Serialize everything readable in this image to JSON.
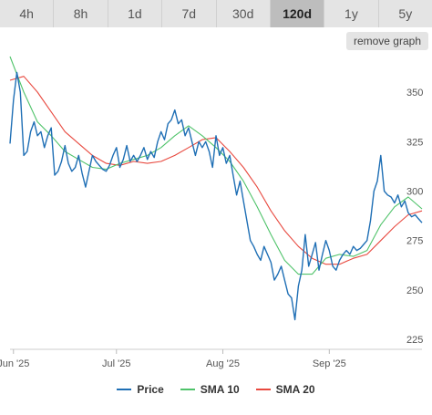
{
  "tabs": [
    {
      "label": "4h",
      "active": false
    },
    {
      "label": "8h",
      "active": false
    },
    {
      "label": "1d",
      "active": false
    },
    {
      "label": "7d",
      "active": false
    },
    {
      "label": "30d",
      "active": false
    },
    {
      "label": "120d",
      "active": true
    },
    {
      "label": "1y",
      "active": false
    },
    {
      "label": "5y",
      "active": false
    }
  ],
  "remove_graph_label": "remove graph",
  "chart_data": {
    "type": "line",
    "title": "",
    "xlabel": "",
    "ylabel": "",
    "grid": false,
    "legend_position": "bottom",
    "x_range": [
      "2025-05-31",
      "2025-09-28"
    ],
    "ylim": [
      220,
      368
    ],
    "y_ticks": [
      225,
      250,
      275,
      300,
      325,
      350
    ],
    "x_ticks": [
      {
        "label": "Jun '25",
        "date": "2025-06-01"
      },
      {
        "label": "Jul '25",
        "date": "2025-07-01"
      },
      {
        "label": "Aug '25",
        "date": "2025-08-01"
      },
      {
        "label": "Sep '25",
        "date": "2025-09-01"
      }
    ],
    "series": [
      {
        "name": "Price",
        "color": "#1f6fb5",
        "points": [
          [
            "2025-05-31",
            324
          ],
          [
            "2025-06-01",
            346
          ],
          [
            "2025-06-02",
            360
          ],
          [
            "2025-06-03",
            350
          ],
          [
            "2025-06-04",
            318
          ],
          [
            "2025-06-05",
            320
          ],
          [
            "2025-06-06",
            330
          ],
          [
            "2025-06-07",
            335
          ],
          [
            "2025-06-08",
            328
          ],
          [
            "2025-06-09",
            330
          ],
          [
            "2025-06-10",
            322
          ],
          [
            "2025-06-11",
            328
          ],
          [
            "2025-06-12",
            332
          ],
          [
            "2025-06-13",
            308
          ],
          [
            "2025-06-14",
            310
          ],
          [
            "2025-06-15",
            315
          ],
          [
            "2025-06-16",
            323
          ],
          [
            "2025-06-17",
            314
          ],
          [
            "2025-06-18",
            310
          ],
          [
            "2025-06-19",
            312
          ],
          [
            "2025-06-20",
            318
          ],
          [
            "2025-06-21",
            309
          ],
          [
            "2025-06-22",
            302
          ],
          [
            "2025-06-23",
            310
          ],
          [
            "2025-06-24",
            318
          ],
          [
            "2025-06-25",
            315
          ],
          [
            "2025-06-26",
            313
          ],
          [
            "2025-06-27",
            311
          ],
          [
            "2025-06-28",
            310
          ],
          [
            "2025-06-29",
            313
          ],
          [
            "2025-06-30",
            318
          ],
          [
            "2025-07-01",
            322
          ],
          [
            "2025-07-02",
            312
          ],
          [
            "2025-07-03",
            316
          ],
          [
            "2025-07-04",
            323
          ],
          [
            "2025-07-05",
            315
          ],
          [
            "2025-07-06",
            318
          ],
          [
            "2025-07-07",
            315
          ],
          [
            "2025-07-08",
            318
          ],
          [
            "2025-07-09",
            322
          ],
          [
            "2025-07-10",
            316
          ],
          [
            "2025-07-11",
            320
          ],
          [
            "2025-07-12",
            317
          ],
          [
            "2025-07-13",
            325
          ],
          [
            "2025-07-14",
            330
          ],
          [
            "2025-07-15",
            326
          ],
          [
            "2025-07-16",
            334
          ],
          [
            "2025-07-17",
            336
          ],
          [
            "2025-07-18",
            341
          ],
          [
            "2025-07-19",
            334
          ],
          [
            "2025-07-20",
            336
          ],
          [
            "2025-07-21",
            328
          ],
          [
            "2025-07-22",
            332
          ],
          [
            "2025-07-23",
            325
          ],
          [
            "2025-07-24",
            318
          ],
          [
            "2025-07-25",
            325
          ],
          [
            "2025-07-26",
            322
          ],
          [
            "2025-07-27",
            325
          ],
          [
            "2025-07-28",
            320
          ],
          [
            "2025-07-29",
            312
          ],
          [
            "2025-07-30",
            328
          ],
          [
            "2025-07-31",
            318
          ],
          [
            "2025-08-01",
            322
          ],
          [
            "2025-08-02",
            314
          ],
          [
            "2025-08-03",
            318
          ],
          [
            "2025-08-04",
            308
          ],
          [
            "2025-08-05",
            298
          ],
          [
            "2025-08-06",
            305
          ],
          [
            "2025-08-07",
            295
          ],
          [
            "2025-08-08",
            285
          ],
          [
            "2025-08-09",
            275
          ],
          [
            "2025-08-10",
            272
          ],
          [
            "2025-08-11",
            268
          ],
          [
            "2025-08-12",
            265
          ],
          [
            "2025-08-13",
            272
          ],
          [
            "2025-08-14",
            268
          ],
          [
            "2025-08-15",
            264
          ],
          [
            "2025-08-16",
            255
          ],
          [
            "2025-08-17",
            258
          ],
          [
            "2025-08-18",
            262
          ],
          [
            "2025-08-19",
            255
          ],
          [
            "2025-08-20",
            248
          ],
          [
            "2025-08-21",
            246
          ],
          [
            "2025-08-22",
            235
          ],
          [
            "2025-08-23",
            252
          ],
          [
            "2025-08-24",
            260
          ],
          [
            "2025-08-25",
            278
          ],
          [
            "2025-08-26",
            262
          ],
          [
            "2025-08-27",
            268
          ],
          [
            "2025-08-28",
            274
          ],
          [
            "2025-08-29",
            260
          ],
          [
            "2025-08-30",
            268
          ],
          [
            "2025-08-31",
            275
          ],
          [
            "2025-09-01",
            270
          ],
          [
            "2025-09-02",
            262
          ],
          [
            "2025-09-03",
            260
          ],
          [
            "2025-09-04",
            265
          ],
          [
            "2025-09-05",
            268
          ],
          [
            "2025-09-06",
            270
          ],
          [
            "2025-09-07",
            268
          ],
          [
            "2025-09-08",
            272
          ],
          [
            "2025-09-09",
            270
          ],
          [
            "2025-09-10",
            271
          ],
          [
            "2025-09-11",
            273
          ],
          [
            "2025-09-12",
            275
          ],
          [
            "2025-09-13",
            285
          ],
          [
            "2025-09-14",
            300
          ],
          [
            "2025-09-15",
            305
          ],
          [
            "2025-09-16",
            318
          ],
          [
            "2025-09-17",
            300
          ],
          [
            "2025-09-18",
            298
          ],
          [
            "2025-09-19",
            297
          ],
          [
            "2025-09-20",
            294
          ],
          [
            "2025-09-21",
            298
          ],
          [
            "2025-09-22",
            292
          ],
          [
            "2025-09-23",
            295
          ],
          [
            "2025-09-24",
            289
          ],
          [
            "2025-09-25",
            287
          ],
          [
            "2025-09-26",
            288
          ],
          [
            "2025-09-27",
            286
          ],
          [
            "2025-09-28",
            284
          ]
        ]
      },
      {
        "name": "SMA 10",
        "color": "#4fc36a",
        "points": [
          [
            "2025-05-31",
            368
          ],
          [
            "2025-06-04",
            350
          ],
          [
            "2025-06-08",
            335
          ],
          [
            "2025-06-12",
            328
          ],
          [
            "2025-06-16",
            320
          ],
          [
            "2025-06-20",
            316
          ],
          [
            "2025-06-24",
            312
          ],
          [
            "2025-06-28",
            311
          ],
          [
            "2025-07-02",
            314
          ],
          [
            "2025-07-06",
            316
          ],
          [
            "2025-07-10",
            318
          ],
          [
            "2025-07-14",
            322
          ],
          [
            "2025-07-18",
            328
          ],
          [
            "2025-07-22",
            333
          ],
          [
            "2025-07-26",
            328
          ],
          [
            "2025-07-30",
            322
          ],
          [
            "2025-08-03",
            315
          ],
          [
            "2025-08-07",
            305
          ],
          [
            "2025-08-11",
            292
          ],
          [
            "2025-08-15",
            278
          ],
          [
            "2025-08-19",
            265
          ],
          [
            "2025-08-23",
            258
          ],
          [
            "2025-08-27",
            258
          ],
          [
            "2025-08-31",
            266
          ],
          [
            "2025-09-04",
            268
          ],
          [
            "2025-09-08",
            267
          ],
          [
            "2025-09-12",
            270
          ],
          [
            "2025-09-16",
            283
          ],
          [
            "2025-09-20",
            292
          ],
          [
            "2025-09-24",
            297
          ],
          [
            "2025-09-28",
            291
          ]
        ]
      },
      {
        "name": "SMA 20",
        "color": "#e8493f",
        "points": [
          [
            "2025-05-31",
            356
          ],
          [
            "2025-06-04",
            358
          ],
          [
            "2025-06-08",
            350
          ],
          [
            "2025-06-12",
            340
          ],
          [
            "2025-06-16",
            330
          ],
          [
            "2025-06-20",
            324
          ],
          [
            "2025-06-24",
            318
          ],
          [
            "2025-06-28",
            314
          ],
          [
            "2025-07-02",
            313
          ],
          [
            "2025-07-06",
            315
          ],
          [
            "2025-07-10",
            314
          ],
          [
            "2025-07-14",
            315
          ],
          [
            "2025-07-18",
            318
          ],
          [
            "2025-07-22",
            322
          ],
          [
            "2025-07-26",
            326
          ],
          [
            "2025-07-30",
            327
          ],
          [
            "2025-08-03",
            320
          ],
          [
            "2025-08-07",
            312
          ],
          [
            "2025-08-11",
            302
          ],
          [
            "2025-08-15",
            290
          ],
          [
            "2025-08-19",
            280
          ],
          [
            "2025-08-23",
            272
          ],
          [
            "2025-08-27",
            266
          ],
          [
            "2025-08-31",
            263
          ],
          [
            "2025-09-04",
            263
          ],
          [
            "2025-09-08",
            266
          ],
          [
            "2025-09-12",
            268
          ],
          [
            "2025-09-16",
            275
          ],
          [
            "2025-09-20",
            282
          ],
          [
            "2025-09-24",
            288
          ],
          [
            "2025-09-28",
            290
          ]
        ]
      }
    ]
  }
}
